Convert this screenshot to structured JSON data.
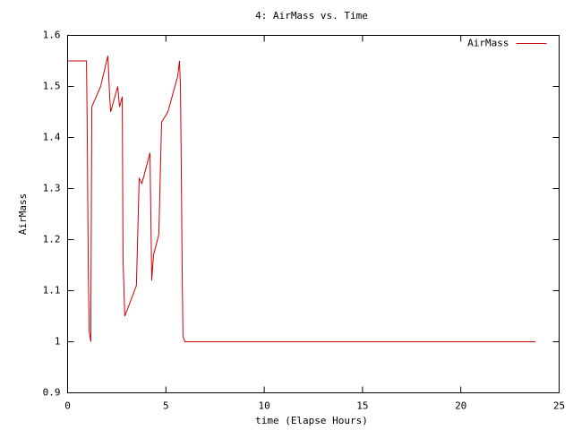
{
  "chart_data": {
    "type": "line",
    "title": "4: AirMass vs. Time",
    "x_label": "time (Elapse Hours)",
    "y_label": "AirMass",
    "x": [
      0,
      0.96,
      1.0,
      1.05,
      1.1,
      1.18,
      1.23,
      1.68,
      2.05,
      2.14,
      2.19,
      2.55,
      2.64,
      2.78,
      2.82,
      2.91,
      3.5,
      3.64,
      3.78,
      4.19,
      4.28,
      4.37,
      4.64,
      4.78,
      5.1,
      5.6,
      5.69,
      5.74,
      5.78,
      5.83,
      5.87,
      5.97,
      23.8
    ],
    "series": [
      {
        "name": "AirMass",
        "color": "#cc0000",
        "values": [
          1.55,
          1.55,
          1.41,
          1.15,
          1.02,
          1.0,
          1.46,
          1.5,
          1.56,
          1.48,
          1.45,
          1.5,
          1.46,
          1.48,
          1.16,
          1.05,
          1.11,
          1.32,
          1.31,
          1.37,
          1.12,
          1.17,
          1.21,
          1.43,
          1.45,
          1.52,
          1.55,
          1.5,
          1.35,
          1.13,
          1.01,
          1.0,
          1.0
        ]
      }
    ],
    "xlim": [
      0,
      25
    ],
    "xticks": [
      0,
      5,
      10,
      15,
      20,
      25
    ],
    "ylim": [
      0.9,
      1.6
    ],
    "yticks": [
      0.9,
      1,
      1.1,
      1.2,
      1.3,
      1.4,
      1.5,
      1.6
    ],
    "legend": "top-right",
    "grid": false
  }
}
